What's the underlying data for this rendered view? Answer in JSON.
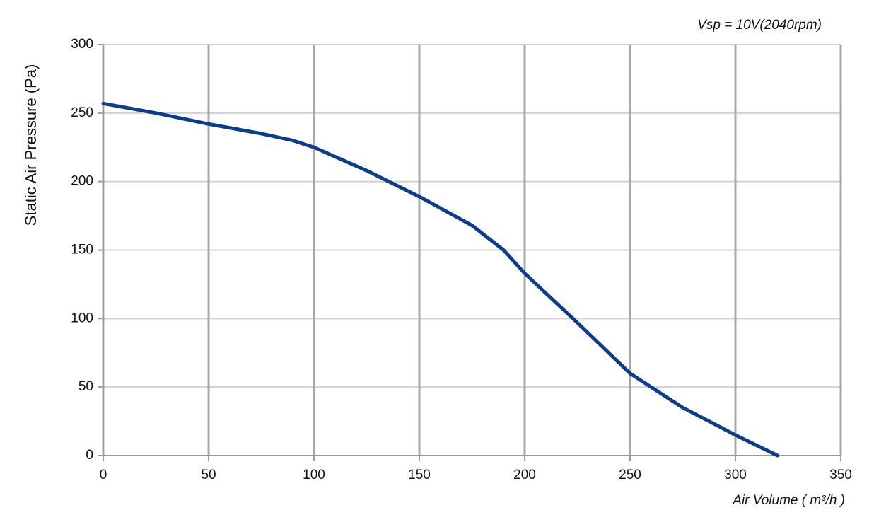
{
  "chart_data": {
    "type": "line",
    "annotation": "Vsp = 10V(2040rpm)",
    "x_label": "Air Volume ( m³/h )",
    "y_label": "Static Air Pressure  (Pa)",
    "x": [
      0,
      25,
      50,
      75,
      90,
      100,
      125,
      150,
      175,
      190,
      200,
      225,
      250,
      275,
      300,
      320
    ],
    "values": [
      257,
      250,
      242,
      235,
      230,
      225,
      208,
      189,
      168,
      150,
      133,
      97,
      60,
      35,
      15,
      0
    ],
    "color": "#0b3d8c",
    "xlim": [
      0,
      350
    ],
    "xticks": [
      0,
      50,
      100,
      150,
      200,
      250,
      300,
      350
    ],
    "ylim": [
      0,
      300
    ],
    "yticks": [
      0,
      50,
      100,
      150,
      200,
      250,
      300
    ],
    "grid": true
  }
}
